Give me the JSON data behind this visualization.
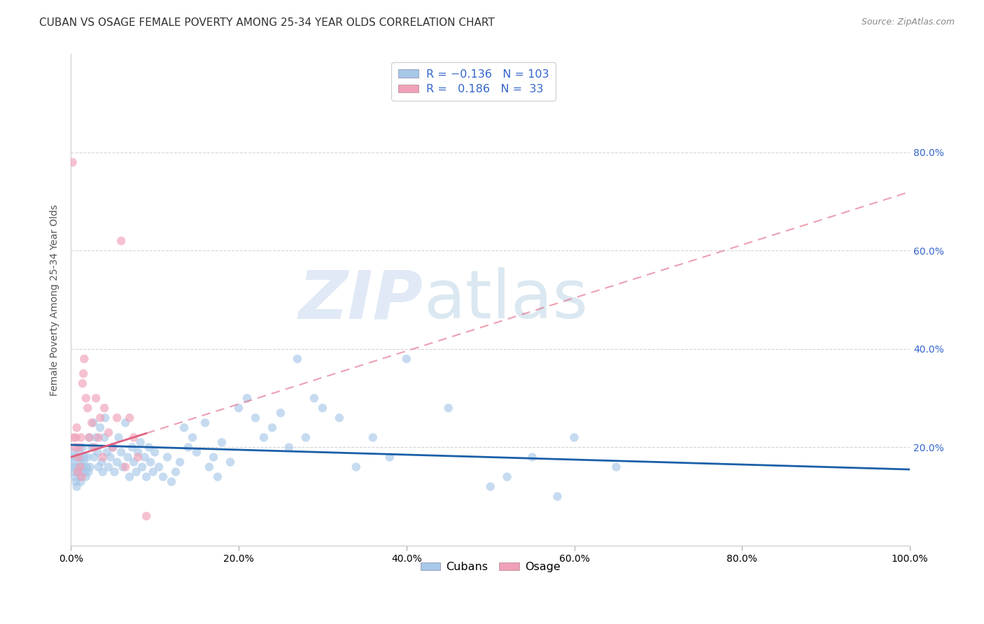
{
  "title": "CUBAN VS OSAGE FEMALE POVERTY AMONG 25-34 YEAR OLDS CORRELATION CHART",
  "source": "Source: ZipAtlas.com",
  "ylabel": "Female Poverty Among 25-34 Year Olds",
  "xlabel_vals": [
    0.0,
    0.2,
    0.4,
    0.6,
    0.8,
    1.0
  ],
  "xlabel_ticks": [
    "0.0%",
    "20.0%",
    "40.0%",
    "60.0%",
    "80.0%",
    "100.0%"
  ],
  "ylim": [
    0.0,
    1.0
  ],
  "xlim": [
    0.0,
    1.0
  ],
  "ytick_vals": [
    0.0,
    0.2,
    0.4,
    0.6,
    0.8
  ],
  "right_ytick_vals": [
    0.2,
    0.4,
    0.6,
    0.8
  ],
  "right_ytick_labels": [
    "20.0%",
    "40.0%",
    "60.0%",
    "80.0%"
  ],
  "watermark_zip": "ZIP",
  "watermark_atlas": "atlas",
  "legend_blue_R": "-0.136",
  "legend_blue_N": "103",
  "legend_pink_R": "0.186",
  "legend_pink_N": "33",
  "scatter_blue_color": "#a8c8e8",
  "scatter_pink_color": "#f0a0b8",
  "blue_line_color": "#1a5fa8",
  "pink_line_color": "#e06080",
  "grid_color": "#cccccc",
  "background_color": "#ffffff",
  "title_fontsize": 11,
  "source_fontsize": 9,
  "axis_label_fontsize": 10,
  "tick_fontsize": 10,
  "scatter_size": 80,
  "scatter_alpha": 0.65,
  "blue_line_x0": 0.0,
  "blue_line_y0": 0.205,
  "blue_line_x1": 1.0,
  "blue_line_y1": 0.155,
  "pink_line_x0": 0.0,
  "pink_line_y0": 0.18,
  "pink_line_x1": 1.0,
  "pink_line_y1": 0.72,
  "cubans_x": [
    0.001,
    0.002,
    0.003,
    0.003,
    0.004,
    0.005,
    0.006,
    0.006,
    0.007,
    0.008,
    0.009,
    0.01,
    0.01,
    0.011,
    0.011,
    0.012,
    0.012,
    0.013,
    0.014,
    0.015,
    0.015,
    0.016,
    0.017,
    0.018,
    0.019,
    0.02,
    0.021,
    0.022,
    0.023,
    0.025,
    0.027,
    0.028,
    0.03,
    0.032,
    0.033,
    0.035,
    0.037,
    0.038,
    0.04,
    0.041,
    0.043,
    0.045,
    0.047,
    0.05,
    0.052,
    0.055,
    0.057,
    0.06,
    0.062,
    0.065,
    0.068,
    0.07,
    0.073,
    0.075,
    0.078,
    0.08,
    0.083,
    0.085,
    0.088,
    0.09,
    0.093,
    0.095,
    0.098,
    0.1,
    0.105,
    0.11,
    0.115,
    0.12,
    0.125,
    0.13,
    0.135,
    0.14,
    0.145,
    0.15,
    0.16,
    0.165,
    0.17,
    0.175,
    0.18,
    0.19,
    0.2,
    0.21,
    0.22,
    0.23,
    0.24,
    0.25,
    0.26,
    0.27,
    0.28,
    0.29,
    0.3,
    0.32,
    0.34,
    0.36,
    0.38,
    0.4,
    0.45,
    0.5,
    0.52,
    0.55,
    0.58,
    0.6,
    0.65
  ],
  "cubans_y": [
    0.18,
    0.17,
    0.16,
    0.19,
    0.15,
    0.14,
    0.13,
    0.16,
    0.12,
    0.18,
    0.15,
    0.19,
    0.16,
    0.17,
    0.14,
    0.18,
    0.13,
    0.15,
    0.2,
    0.17,
    0.16,
    0.18,
    0.15,
    0.14,
    0.16,
    0.18,
    0.15,
    0.22,
    0.16,
    0.2,
    0.25,
    0.18,
    0.22,
    0.19,
    0.16,
    0.24,
    0.17,
    0.15,
    0.22,
    0.26,
    0.19,
    0.16,
    0.18,
    0.2,
    0.15,
    0.17,
    0.22,
    0.19,
    0.16,
    0.25,
    0.18,
    0.14,
    0.2,
    0.17,
    0.15,
    0.19,
    0.21,
    0.16,
    0.18,
    0.14,
    0.2,
    0.17,
    0.15,
    0.19,
    0.16,
    0.14,
    0.18,
    0.13,
    0.15,
    0.17,
    0.24,
    0.2,
    0.22,
    0.19,
    0.25,
    0.16,
    0.18,
    0.14,
    0.21,
    0.17,
    0.28,
    0.3,
    0.26,
    0.22,
    0.24,
    0.27,
    0.2,
    0.38,
    0.22,
    0.3,
    0.28,
    0.26,
    0.16,
    0.22,
    0.18,
    0.38,
    0.28,
    0.12,
    0.14,
    0.18,
    0.1,
    0.22,
    0.16
  ],
  "osage_x": [
    0.002,
    0.003,
    0.005,
    0.006,
    0.007,
    0.008,
    0.009,
    0.01,
    0.011,
    0.012,
    0.013,
    0.014,
    0.015,
    0.016,
    0.018,
    0.02,
    0.022,
    0.025,
    0.028,
    0.03,
    0.033,
    0.035,
    0.038,
    0.04,
    0.045,
    0.05,
    0.055,
    0.06,
    0.065,
    0.07,
    0.075,
    0.08,
    0.09
  ],
  "osage_y": [
    0.78,
    0.22,
    0.2,
    0.22,
    0.24,
    0.15,
    0.18,
    0.2,
    0.16,
    0.22,
    0.14,
    0.33,
    0.35,
    0.38,
    0.3,
    0.28,
    0.22,
    0.25,
    0.2,
    0.3,
    0.22,
    0.26,
    0.18,
    0.28,
    0.23,
    0.2,
    0.26,
    0.62,
    0.16,
    0.26,
    0.22,
    0.18,
    0.06
  ]
}
